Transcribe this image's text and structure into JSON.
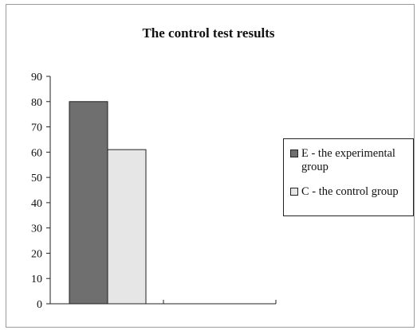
{
  "chart_data": {
    "type": "bar",
    "title": "The control test results",
    "categories": [
      ""
    ],
    "series": [
      {
        "name": "E - the experimental group",
        "values": [
          80
        ],
        "color": "#6f6f6f"
      },
      {
        "name": "C - the control group",
        "values": [
          61
        ],
        "color": "#e6e6e6"
      }
    ],
    "xlabel": "",
    "ylabel": "",
    "ylim": [
      0,
      90
    ],
    "yticks": [
      0,
      10,
      20,
      30,
      40,
      50,
      60,
      70,
      80,
      90
    ],
    "grid": false,
    "legend_position": "right"
  }
}
